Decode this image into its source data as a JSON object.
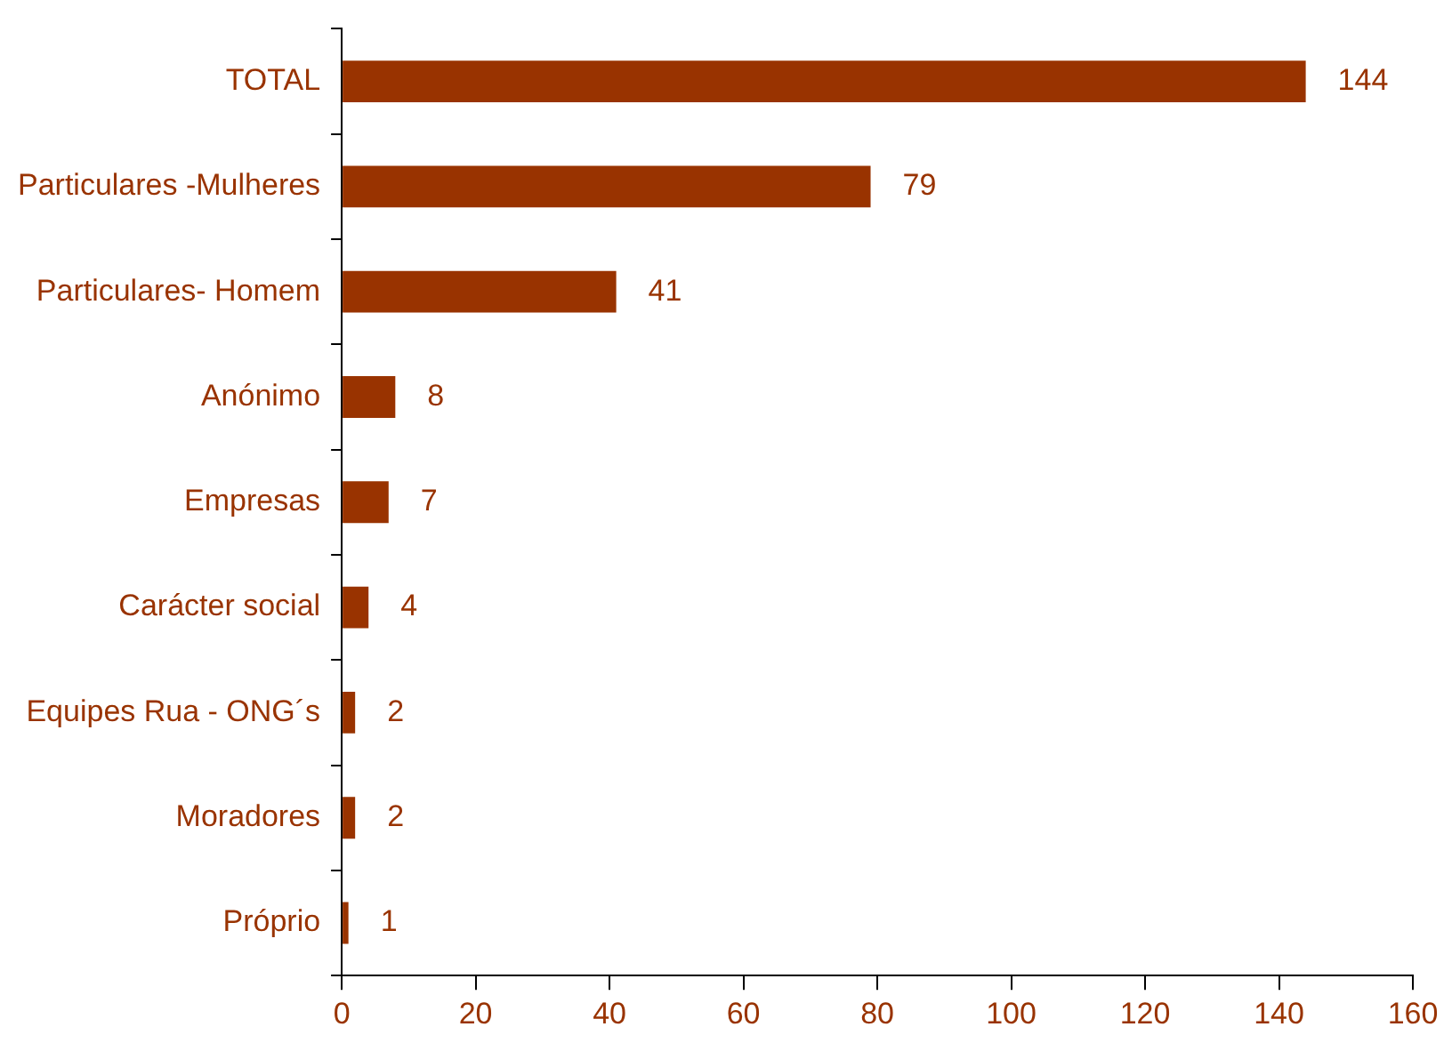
{
  "chart_data": {
    "type": "bar",
    "orientation": "horizontal",
    "categories": [
      "TOTAL",
      "Particulares -Mulheres",
      "Particulares- Homem",
      "Anónimo",
      "Empresas",
      "Carácter social",
      "Equipes Rua - ONG´s",
      "Moradores",
      "Próprio"
    ],
    "values": [
      144,
      79,
      41,
      8,
      7,
      4,
      2,
      2,
      1
    ],
    "color": "#993300",
    "xlim": [
      0,
      160
    ],
    "xticks": [
      0,
      20,
      40,
      60,
      80,
      100,
      120,
      140,
      160
    ],
    "grid": false,
    "legend": false,
    "data_labels": true
  }
}
